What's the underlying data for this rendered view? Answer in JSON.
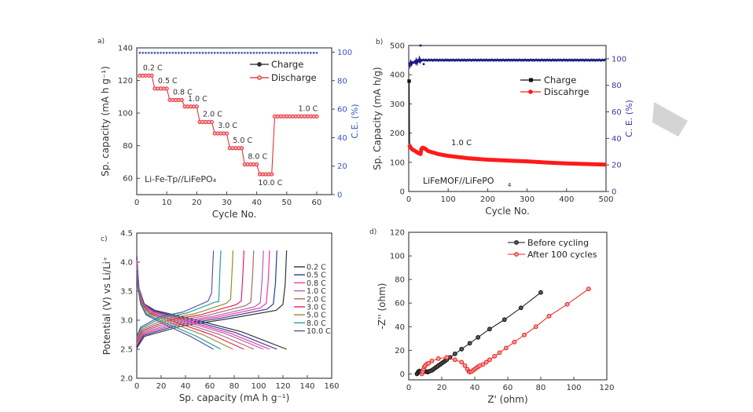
{
  "decoration": {
    "shape": "grey-parallelogram",
    "color": "#d4d4d4"
  },
  "chart_data": [
    {
      "id": "a",
      "panel_label": "a)",
      "type": "scatter",
      "title": "",
      "xlabel": "Cycle No.",
      "ylabel": "Sp. capacity (mA h g⁻¹)",
      "y2label": "C.E. (%)",
      "xlim": [
        0,
        65
      ],
      "ylim": [
        50,
        140
      ],
      "y2lim": [
        0,
        103
      ],
      "xticks": [
        0,
        10,
        20,
        30,
        40,
        50,
        60
      ],
      "yticks": [
        60,
        80,
        100,
        120,
        140
      ],
      "y2ticks": [
        0,
        20,
        40,
        60,
        80,
        100
      ],
      "annotation": "Li-Fe-Tp//LiFePO₄",
      "rate_steps": [
        {
          "label": "0.2 C",
          "start": 1,
          "end": 5,
          "value": 123
        },
        {
          "label": "0.5 C",
          "start": 6,
          "end": 10,
          "value": 115
        },
        {
          "label": "0.8 C",
          "start": 11,
          "end": 15,
          "value": 108
        },
        {
          "label": "1.0 C",
          "start": 16,
          "end": 20,
          "value": 104
        },
        {
          "label": "2.0 C",
          "start": 21,
          "end": 25,
          "value": 94.5
        },
        {
          "label": "3.0 C",
          "start": 26,
          "end": 30,
          "value": 87.5
        },
        {
          "label": "5.0 C",
          "start": 31,
          "end": 35,
          "value": 78.5
        },
        {
          "label": "8.0 C",
          "start": 36,
          "end": 40,
          "value": 68.5
        },
        {
          "label": "10.0 C",
          "start": 41,
          "end": 45,
          "value": 62.5
        },
        {
          "label": "1.0 C",
          "start": 46,
          "end": 60,
          "value": 98
        }
      ],
      "series": [
        {
          "name": "Charge",
          "color": "#222222"
        },
        {
          "name": "Discharge",
          "color": "#e8202a"
        },
        {
          "name": "C.E.",
          "color": "#3a55c0",
          "value": 99.5,
          "axis": "right"
        }
      ],
      "legend": "top-right",
      "right_axis_color": "#3a55c0"
    },
    {
      "id": "b",
      "panel_label": "b)",
      "type": "line",
      "xlabel": "Cycle No.",
      "ylabel": "Sp. Capacity (mA h/g)",
      "y2label": "C. E. (%)",
      "xlim": [
        0,
        500
      ],
      "ylim": [
        0,
        500
      ],
      "y2lim": [
        0,
        110
      ],
      "xticks": [
        0,
        100,
        200,
        300,
        400,
        500
      ],
      "yticks": [
        0,
        100,
        200,
        300,
        400,
        500
      ],
      "y2ticks": [
        0,
        20,
        40,
        60,
        80,
        100
      ],
      "annotation": "LiFeMOF//LiFePO",
      "annotation_sub": "4",
      "rate_label": "1.0 C",
      "series": [
        {
          "name": "Charge",
          "color": "#111111",
          "x": [
            1,
            2,
            3
          ],
          "y": [
            378,
            170,
            163
          ]
        },
        {
          "name": "Discahrge",
          "color": "#ff1a1a",
          "x": [
            1,
            5,
            10,
            15,
            20,
            25,
            30,
            32,
            35,
            40,
            45,
            50,
            75,
            100,
            150,
            200,
            250,
            300,
            350,
            400,
            450,
            500
          ],
          "y": [
            160,
            150,
            143,
            140,
            135,
            131,
            128,
            145,
            150,
            148,
            143,
            138,
            128,
            122,
            114,
            109,
            106,
            103,
            99,
            96,
            94,
            92
          ]
        },
        {
          "name": "C.E.",
          "color": "#1a1a80",
          "value": 99,
          "axis": "right",
          "outliers": [
            [
              30,
              110
            ],
            [
              38,
              96
            ],
            [
              2,
              96
            ]
          ]
        }
      ],
      "legend": "top-right",
      "right_axis_color": "#3a3a9a"
    },
    {
      "id": "c",
      "panel_label": "c)",
      "type": "line",
      "xlabel": "Sp. capacity (mA h g⁻¹)",
      "ylabel": "Potential (V) vs Li/Li⁺",
      "xlim": [
        0,
        160
      ],
      "ylim": [
        2.0,
        4.5
      ],
      "xticks": [
        0,
        20,
        40,
        60,
        80,
        100,
        120,
        140,
        160
      ],
      "yticks": [
        "2.0",
        "2.5",
        "3.0",
        "3.5",
        "4.0",
        "4.5"
      ],
      "series": [
        {
          "name": "0.2 C",
          "color": "#333333",
          "capacity": 123,
          "knee": 3.27
        },
        {
          "name": "0.5 C",
          "color": "#2b3a9e",
          "capacity": 115,
          "knee": 3.28
        },
        {
          "name": "0.8 C",
          "color": "#ff3399",
          "capacity": 109,
          "knee": 3.29
        },
        {
          "name": "1.0 C",
          "color": "#b060c0",
          "capacity": 104,
          "knee": 3.3
        },
        {
          "name": "2.0 C",
          "color": "#a07060",
          "capacity": 96,
          "knee": 3.31
        },
        {
          "name": "3.0 C",
          "color": "#e8206a",
          "capacity": 88,
          "knee": 3.33
        },
        {
          "name": "5.0 C",
          "color": "#9a8a30",
          "capacity": 79,
          "knee": 3.36
        },
        {
          "name": "8.0 C",
          "color": "#20a0a8",
          "capacity": 69,
          "knee": 3.32
        },
        {
          "name": "10.0 C",
          "color": "#5a5aa0",
          "capacity": 63,
          "knee": 3.47
        }
      ],
      "legend": "right"
    },
    {
      "id": "d",
      "panel_label": "d)",
      "type": "scatter",
      "xlabel": "Z' (ohm)",
      "ylabel": "-Z'' (ohm)",
      "xlim": [
        0,
        120
      ],
      "ylim": [
        -5,
        120
      ],
      "xticks": [
        0,
        20,
        40,
        60,
        80,
        100,
        120
      ],
      "yticks": [
        0,
        20,
        40,
        60,
        80,
        100,
        120
      ],
      "series": [
        {
          "name": "Before cycling",
          "color": "#111111",
          "x": [
            5,
            5.5,
            6,
            6.5,
            7,
            8,
            10,
            11,
            11.5,
            12,
            13,
            14,
            15,
            16,
            17,
            18,
            19,
            20,
            21,
            22,
            23,
            25,
            28,
            32,
            37,
            42,
            49,
            58,
            68,
            80
          ],
          "y": [
            0,
            1,
            2,
            2.5,
            2,
            1,
            2,
            2,
            1.5,
            2,
            2.5,
            3,
            4,
            5,
            6,
            7,
            8,
            9,
            10,
            11,
            12,
            14,
            17,
            21,
            26,
            31,
            38,
            46,
            56,
            69
          ]
        },
        {
          "name": "After 100 cycles",
          "color": "#ee1c1c",
          "x": [
            8,
            8.5,
            9,
            9.5,
            10,
            11,
            12,
            14,
            18,
            23,
            28,
            32,
            34,
            35.5,
            36.5,
            37,
            38,
            39,
            40,
            41,
            42,
            43,
            45,
            47,
            49,
            52,
            55,
            59,
            64,
            70,
            77,
            85,
            96,
            109
          ],
          "y": [
            0,
            2,
            4,
            6,
            7,
            8.5,
            9,
            11,
            13,
            14,
            12,
            10,
            7,
            4,
            2,
            1.5,
            2,
            3,
            4,
            5,
            6,
            7,
            8,
            10,
            12,
            15,
            18,
            22,
            27,
            33,
            40,
            49,
            59,
            72
          ]
        }
      ],
      "legend": "top-right"
    }
  ]
}
